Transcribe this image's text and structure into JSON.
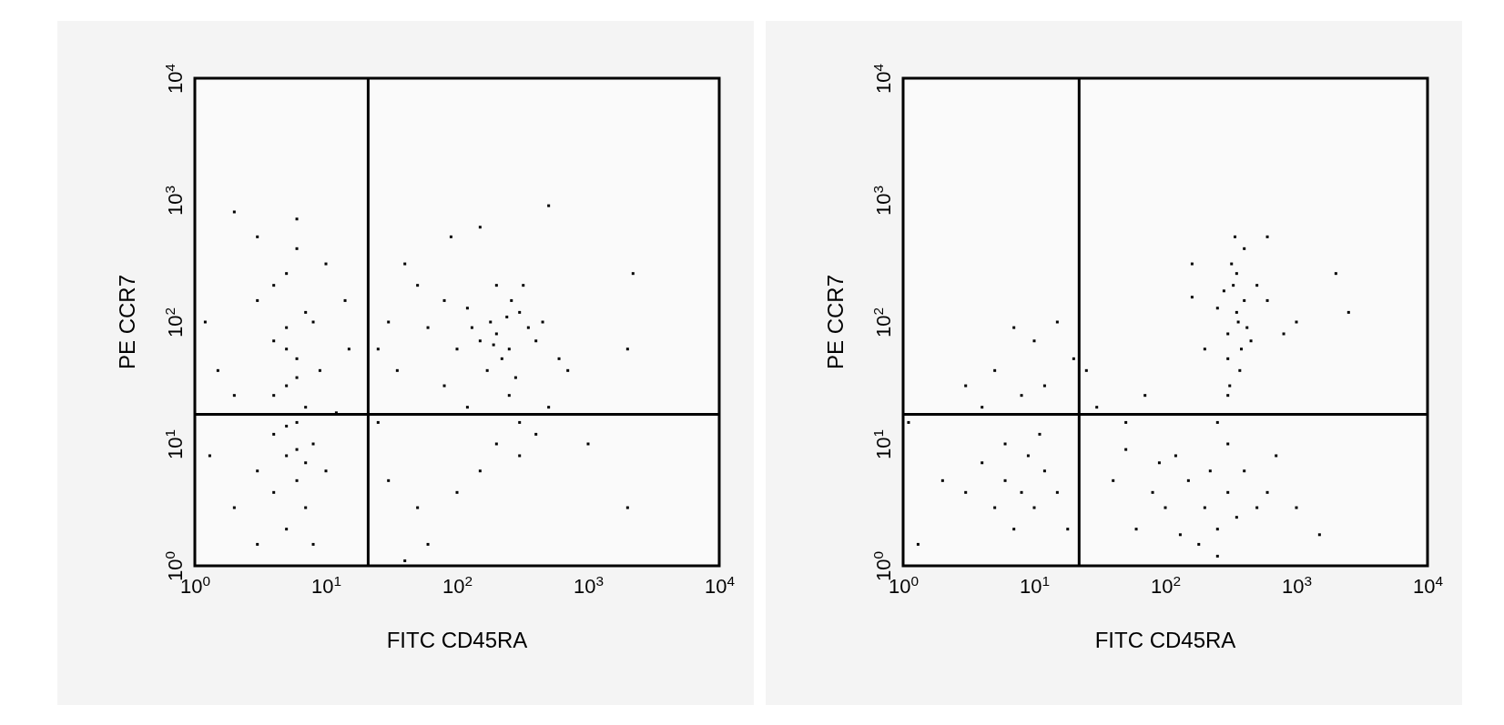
{
  "chart_data": [
    {
      "type": "scatter",
      "xlabel": "FITC CD45RA",
      "ylabel": "PE CCR7",
      "log": "xy",
      "grid": false,
      "marker": "square",
      "xlim": [
        1,
        10000
      ],
      "ylim": [
        1,
        10000
      ],
      "xticks": [
        {
          "value": 1,
          "label": "10$^{0}$"
        },
        {
          "value": 10,
          "label": "10$^{1}$"
        },
        {
          "value": 100,
          "label": "10$^{2}$"
        },
        {
          "value": 1000,
          "label": "10$^{3}$"
        },
        {
          "value": 10000,
          "label": "10$^{4}$"
        }
      ],
      "yticks": [
        {
          "value": 1,
          "label": "10$^{0}$"
        },
        {
          "value": 10,
          "label": "10$^{1}$"
        },
        {
          "value": 100,
          "label": "10$^{2}$"
        },
        {
          "value": 1000,
          "label": "10$^{3}$"
        },
        {
          "value": 10000,
          "label": "10$^{4}$"
        }
      ],
      "ref_lines": [
        {
          "axis": "x",
          "value": 21,
          "color": "#000000"
        },
        {
          "axis": "y",
          "value": 17.5,
          "color": "#000000"
        }
      ],
      "series": [
        {
          "color": "#000000",
          "x": [
            5,
            6,
            4,
            7,
            5,
            6,
            4,
            8,
            3,
            5,
            6,
            7,
            5,
            4,
            6,
            8,
            3,
            9,
            2,
            5,
            7,
            4,
            10,
            3,
            6,
            2,
            1.2,
            1.5,
            1.3,
            2,
            3,
            8,
            10,
            12,
            15,
            14,
            6,
            5,
            7,
            4,
            6,
            5,
            200,
            250,
            180,
            300,
            150,
            220,
            350,
            120,
            260,
            400,
            170,
            280,
            200,
            130,
            320,
            240,
            190,
            450,
            100,
            80,
            60,
            50,
            40,
            90,
            150,
            500,
            30,
            35,
            600,
            250,
            300,
            200,
            150,
            100,
            50,
            300,
            400,
            700,
            1000,
            2000,
            2200,
            2000,
            60,
            40,
            500,
            25,
            25,
            30,
            80,
            120
          ],
          "values": [
            8,
            5,
            12,
            20,
            30,
            50,
            70,
            100,
            150,
            250,
            400,
            3,
            2,
            4,
            15,
            10,
            6,
            40,
            25,
            60,
            120,
            200,
            300,
            500,
            700,
            800,
            100,
            40,
            8,
            3,
            1.5,
            1.5,
            6,
            18,
            60,
            150,
            9,
            14,
            7,
            25,
            35,
            90,
            80,
            60,
            100,
            120,
            70,
            50,
            90,
            130,
            150,
            70,
            40,
            35,
            200,
            90,
            200,
            110,
            65,
            100,
            60,
            150,
            90,
            200,
            300,
            500,
            600,
            900,
            100,
            40,
            50,
            25,
            15,
            10,
            6,
            4,
            3,
            8,
            12,
            40,
            10,
            60,
            250,
            3,
            1.5,
            1.1,
            20,
            60,
            15,
            5,
            30,
            20
          ]
        }
      ]
    },
    {
      "type": "scatter",
      "xlabel": "FITC CD45RA",
      "ylabel": "PE CCR7",
      "log": "xy",
      "grid": false,
      "marker": "square",
      "xlim": [
        1,
        10000
      ],
      "ylim": [
        1,
        10000
      ],
      "xticks": [
        {
          "value": 1,
          "label": "10$^{0}$"
        },
        {
          "value": 10,
          "label": "10$^{1}$"
        },
        {
          "value": 100,
          "label": "10$^{2}$"
        },
        {
          "value": 1000,
          "label": "10$^{3}$"
        },
        {
          "value": 10000,
          "label": "10$^{4}$"
        }
      ],
      "yticks": [
        {
          "value": 1,
          "label": "10$^{0}$"
        },
        {
          "value": 10,
          "label": "10$^{1}$"
        },
        {
          "value": 100,
          "label": "10$^{2}$"
        },
        {
          "value": 1000,
          "label": "10$^{3}$"
        },
        {
          "value": 10000,
          "label": "10$^{4}$"
        }
      ],
      "ref_lines": [
        {
          "axis": "x",
          "value": 22,
          "color": "#000000"
        },
        {
          "axis": "y",
          "value": 17.5,
          "color": "#000000"
        }
      ],
      "series": [
        {
          "color": "#000000",
          "x": [
            350,
            300,
            400,
            330,
            380,
            320,
            360,
            280,
            420,
            300,
            350,
            400,
            340,
            250,
            450,
            370,
            310,
            500,
            600,
            800,
            1000,
            2500,
            2000,
            160,
            600,
            200,
            200,
            250,
            150,
            300,
            100,
            180,
            250,
            400,
            120,
            80,
            60,
            350,
            500,
            220,
            130,
            90,
            40,
            50,
            600,
            700,
            1000,
            1500,
            300,
            250,
            300,
            8,
            10,
            6,
            12,
            5,
            7,
            15,
            9,
            4,
            18,
            3,
            6,
            11,
            8,
            5,
            10,
            12,
            4,
            20,
            1.1,
            1.3,
            2,
            3,
            25,
            30,
            50,
            70,
            160,
            7,
            15
          ],
          "values": [
            120,
            80,
            150,
            200,
            60,
            300,
            100,
            180,
            90,
            50,
            250,
            400,
            500,
            130,
            70,
            40,
            30,
            200,
            150,
            80,
            100,
            120,
            250,
            300,
            500,
            60,
            3,
            2,
            5,
            4,
            3,
            1.5,
            1.2,
            6,
            8,
            4,
            2,
            2.5,
            3,
            6,
            1.8,
            7,
            5,
            9,
            4,
            8,
            3,
            1.8,
            10,
            15,
            25,
            4,
            3,
            5,
            6,
            3,
            2,
            4,
            8,
            7,
            2,
            4,
            10,
            12,
            25,
            40,
            70,
            30,
            20,
            50,
            15,
            1.5,
            5,
            30,
            40,
            20,
            15,
            25,
            160,
            90,
            100
          ]
        }
      ]
    }
  ]
}
